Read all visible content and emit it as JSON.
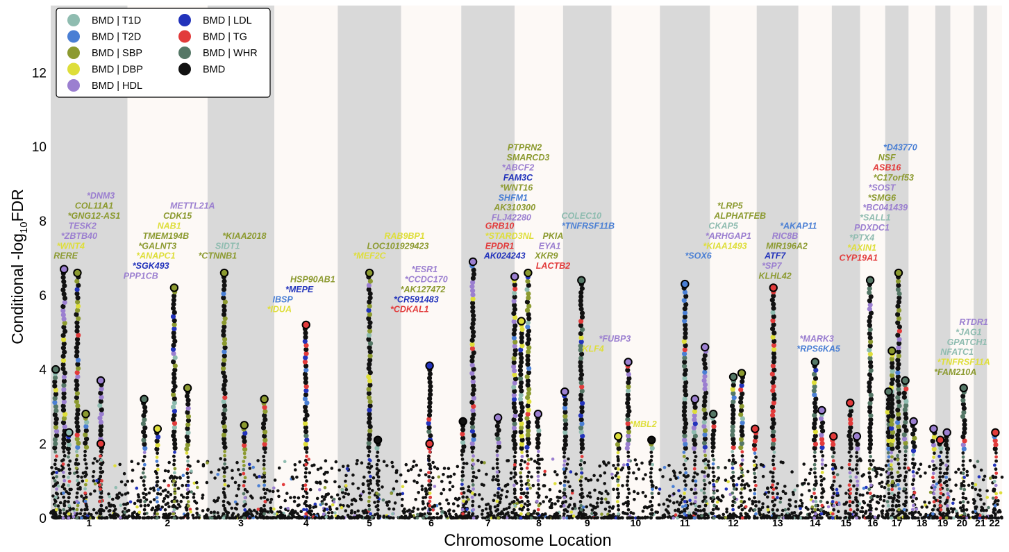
{
  "chart_data": {
    "type": "scatter",
    "xlabel": "Chromosome Location",
    "ylabel_main": "Conditional -log",
    "ylabel_sub": "10",
    "ylabel_end": "FDR",
    "ylim": [
      0,
      13.8
    ],
    "yticks": [
      "0",
      "2",
      "4",
      "6",
      "8",
      "10",
      "12"
    ],
    "ytick_values": [
      0,
      2,
      4,
      6,
      8,
      10,
      12
    ],
    "legend_position": "top-left",
    "grid": false,
    "chromosomes": [
      {
        "label": "1",
        "start": 0,
        "end": 230
      },
      {
        "label": "2",
        "start": 230,
        "end": 470
      },
      {
        "label": "3",
        "start": 470,
        "end": 670
      },
      {
        "label": "4",
        "start": 670,
        "end": 860
      },
      {
        "label": "5",
        "start": 860,
        "end": 1050
      },
      {
        "label": "6",
        "start": 1050,
        "end": 1230
      },
      {
        "label": "7",
        "start": 1230,
        "end": 1390
      },
      {
        "label": "8",
        "start": 1390,
        "end": 1535
      },
      {
        "label": "9",
        "start": 1535,
        "end": 1680
      },
      {
        "label": "10",
        "start": 1680,
        "end": 1825
      },
      {
        "label": "11",
        "start": 1825,
        "end": 1975
      },
      {
        "label": "12",
        "start": 1975,
        "end": 2115
      },
      {
        "label": "13",
        "start": 2115,
        "end": 2240
      },
      {
        "label": "14",
        "start": 2240,
        "end": 2340
      },
      {
        "label": "15",
        "start": 2340,
        "end": 2425
      },
      {
        "label": "16",
        "start": 2425,
        "end": 2500
      },
      {
        "label": "17",
        "start": 2500,
        "end": 2570
      },
      {
        "label": "18",
        "start": 2570,
        "end": 2650
      },
      {
        "label": "19",
        "start": 2650,
        "end": 2695
      },
      {
        "label": "20",
        "start": 2695,
        "end": 2765
      },
      {
        "label": "21",
        "start": 2765,
        "end": 2805
      },
      {
        "label": "22",
        "start": 2805,
        "end": 2850
      }
    ],
    "series": [
      {
        "name": "BMD | T1D",
        "color": "#8fbcb0"
      },
      {
        "name": "BMD | T2D",
        "color": "#4a7fd4"
      },
      {
        "name": "BMD | SBP",
        "color": "#8c9a30"
      },
      {
        "name": "BMD | DBP",
        "color": "#dede3a"
      },
      {
        "name": "BMD | HDL",
        "color": "#9b7fd0"
      },
      {
        "name": "BMD | LDL",
        "color": "#2233bb"
      },
      {
        "name": "BMD | TG",
        "color": "#e23b3b"
      },
      {
        "name": "BMD | WHR",
        "color": "#557766"
      },
      {
        "name": "BMD",
        "color": "#111111"
      }
    ],
    "peaks": [
      {
        "x": 15,
        "y": 4.0,
        "series": "BMD | WHR"
      },
      {
        "x": 40,
        "y": 6.7,
        "series": "BMD | HDL"
      },
      {
        "x": 55,
        "y": 2.3,
        "series": "BMD | T1D"
      },
      {
        "x": 80,
        "y": 6.6,
        "series": "BMD | SBP"
      },
      {
        "x": 105,
        "y": 2.8,
        "series": "BMD | SBP"
      },
      {
        "x": 150,
        "y": 3.7,
        "series": "BMD | HDL"
      },
      {
        "x": 150,
        "y": 2.0,
        "series": "BMD | TG"
      },
      {
        "x": 280,
        "y": 3.2,
        "series": "BMD | WHR"
      },
      {
        "x": 320,
        "y": 2.4,
        "series": "BMD | DBP"
      },
      {
        "x": 370,
        "y": 6.2,
        "series": "BMD | SBP"
      },
      {
        "x": 410,
        "y": 3.5,
        "series": "BMD | SBP"
      },
      {
        "x": 520,
        "y": 6.6,
        "series": "BMD | SBP"
      },
      {
        "x": 580,
        "y": 2.5,
        "series": "BMD | SBP"
      },
      {
        "x": 640,
        "y": 3.2,
        "series": "BMD | SBP"
      },
      {
        "x": 765,
        "y": 5.2,
        "series": "BMD | TG"
      },
      {
        "x": 955,
        "y": 6.6,
        "series": "BMD | SBP"
      },
      {
        "x": 980,
        "y": 2.1,
        "series": "BMD"
      },
      {
        "x": 1135,
        "y": 4.1,
        "series": "BMD | LDL"
      },
      {
        "x": 1135,
        "y": 2.0,
        "series": "BMD | TG"
      },
      {
        "x": 1235,
        "y": 2.6,
        "series": "BMD"
      },
      {
        "x": 1265,
        "y": 6.9,
        "series": "BMD | HDL"
      },
      {
        "x": 1340,
        "y": 2.7,
        "series": "BMD | HDL"
      },
      {
        "x": 1390,
        "y": 6.5,
        "series": "BMD | HDL"
      },
      {
        "x": 1410,
        "y": 5.3,
        "series": "BMD | DBP"
      },
      {
        "x": 1430,
        "y": 6.6,
        "series": "BMD | SBP"
      },
      {
        "x": 1460,
        "y": 2.8,
        "series": "BMD | HDL"
      },
      {
        "x": 1540,
        "y": 3.4,
        "series": "BMD | HDL"
      },
      {
        "x": 1590,
        "y": 6.4,
        "series": "BMD | WHR"
      },
      {
        "x": 1700,
        "y": 2.2,
        "series": "BMD | DBP"
      },
      {
        "x": 1730,
        "y": 4.2,
        "series": "BMD | HDL"
      },
      {
        "x": 1800,
        "y": 2.1,
        "series": "BMD"
      },
      {
        "x": 1900,
        "y": 6.3,
        "series": "BMD | T2D"
      },
      {
        "x": 1930,
        "y": 3.2,
        "series": "BMD | HDL"
      },
      {
        "x": 1960,
        "y": 4.6,
        "series": "BMD | HDL"
      },
      {
        "x": 1985,
        "y": 2.8,
        "series": "BMD | WHR"
      },
      {
        "x": 2045,
        "y": 3.8,
        "series": "BMD | WHR"
      },
      {
        "x": 2070,
        "y": 3.9,
        "series": "BMD | SBP"
      },
      {
        "x": 2110,
        "y": 2.4,
        "series": "BMD | TG"
      },
      {
        "x": 2165,
        "y": 6.2,
        "series": "BMD | TG"
      },
      {
        "x": 2290,
        "y": 4.2,
        "series": "BMD | WHR"
      },
      {
        "x": 2310,
        "y": 2.9,
        "series": "BMD | HDL"
      },
      {
        "x": 2345,
        "y": 2.2,
        "series": "BMD | TG"
      },
      {
        "x": 2395,
        "y": 3.1,
        "series": "BMD | TG"
      },
      {
        "x": 2415,
        "y": 2.2,
        "series": "BMD | HDL"
      },
      {
        "x": 2455,
        "y": 6.4,
        "series": "BMD | WHR"
      },
      {
        "x": 2510,
        "y": 3.4,
        "series": "BMD | WHR"
      },
      {
        "x": 2520,
        "y": 4.5,
        "series": "BMD | SBP"
      },
      {
        "x": 2540,
        "y": 6.6,
        "series": "BMD | SBP"
      },
      {
        "x": 2560,
        "y": 3.7,
        "series": "BMD | WHR"
      },
      {
        "x": 2585,
        "y": 2.6,
        "series": "BMD | HDL"
      },
      {
        "x": 2645,
        "y": 2.4,
        "series": "BMD | HDL"
      },
      {
        "x": 2665,
        "y": 2.1,
        "series": "BMD | TG"
      },
      {
        "x": 2685,
        "y": 2.3,
        "series": "BMD | HDL"
      },
      {
        "x": 2735,
        "y": 3.5,
        "series": "BMD | WHR"
      },
      {
        "x": 2830,
        "y": 2.3,
        "series": "BMD | TG"
      }
    ],
    "gene_labels": [
      {
        "text": "*DNM3",
        "color": "#9b7fd0",
        "x": 150,
        "y": 8.6
      },
      {
        "text": "COL11A1",
        "color": "#8c9a30",
        "x": 130,
        "y": 8.33
      },
      {
        "text": "*GNG12-AS1",
        "color": "#8c9a30",
        "x": 130,
        "y": 8.06
      },
      {
        "text": "TESK2",
        "color": "#9b7fd0",
        "x": 95,
        "y": 7.79
      },
      {
        "text": "*ZBTB40",
        "color": "#9b7fd0",
        "x": 85,
        "y": 7.52
      },
      {
        "text": "*WNT4",
        "color": "#dede3a",
        "x": 60,
        "y": 7.25
      },
      {
        "text": "RERE",
        "color": "#8c9a30",
        "x": 45,
        "y": 6.98
      },
      {
        "text": "METTL21A",
        "color": "#9b7fd0",
        "x": 425,
        "y": 8.33
      },
      {
        "text": "CDK15",
        "color": "#8c9a30",
        "x": 380,
        "y": 8.06
      },
      {
        "text": "NAB1",
        "color": "#dede3a",
        "x": 355,
        "y": 7.79
      },
      {
        "text": "TMEM194B",
        "color": "#8c9a30",
        "x": 345,
        "y": 7.52
      },
      {
        "text": "*GALNT3",
        "color": "#8c9a30",
        "x": 320,
        "y": 7.25
      },
      {
        "text": "*ANAPC1",
        "color": "#dede3a",
        "x": 315,
        "y": 6.98
      },
      {
        "text": "*SGK493",
        "color": "#2233bb",
        "x": 300,
        "y": 6.71
      },
      {
        "text": "PPP1CB",
        "color": "#9b7fd0",
        "x": 270,
        "y": 6.44
      },
      {
        "text": "*KIAA2018",
        "color": "#8c9a30",
        "x": 580,
        "y": 7.52
      },
      {
        "text": "SIDT1",
        "color": "#8fbcb0",
        "x": 530,
        "y": 7.25
      },
      {
        "text": "*CTNNB1",
        "color": "#8c9a30",
        "x": 500,
        "y": 6.98
      },
      {
        "text": "HSP90AB1",
        "color": "#8c9a30",
        "x": 785,
        "y": 6.35
      },
      {
        "text": "*MEPE",
        "color": "#2233bb",
        "x": 745,
        "y": 6.08
      },
      {
        "text": "IBSP",
        "color": "#4a7fd4",
        "x": 695,
        "y": 5.81
      },
      {
        "text": "*IDUA",
        "color": "#dede3a",
        "x": 685,
        "y": 5.54
      },
      {
        "text": "RAB9BP1",
        "color": "#dede3a",
        "x": 1060,
        "y": 7.52
      },
      {
        "text": "LOC101929423",
        "color": "#8c9a30",
        "x": 1040,
        "y": 7.25
      },
      {
        "text": "*MEF2C",
        "color": "#dede3a",
        "x": 955,
        "y": 6.98
      },
      {
        "text": "*ESR1",
        "color": "#9b7fd0",
        "x": 1120,
        "y": 6.62
      },
      {
        "text": "*CCDC170",
        "color": "#9b7fd0",
        "x": 1125,
        "y": 6.35
      },
      {
        "text": "*AK127472",
        "color": "#8c9a30",
        "x": 1115,
        "y": 6.08
      },
      {
        "text": "*CR591483",
        "color": "#2233bb",
        "x": 1095,
        "y": 5.81
      },
      {
        "text": "*CDKAL1",
        "color": "#e23b3b",
        "x": 1075,
        "y": 5.54
      },
      {
        "text": "PTPRN2",
        "color": "#8c9a30",
        "x": 1420,
        "y": 9.9
      },
      {
        "text": "SMARCD3",
        "color": "#8c9a30",
        "x": 1430,
        "y": 9.63
      },
      {
        "text": "*ABCF2",
        "color": "#9b7fd0",
        "x": 1400,
        "y": 9.36
      },
      {
        "text": "FAM3C",
        "color": "#2233bb",
        "x": 1400,
        "y": 9.09
      },
      {
        "text": "*WNT16",
        "color": "#8c9a30",
        "x": 1395,
        "y": 8.82
      },
      {
        "text": "SHFM1",
        "color": "#4a7fd4",
        "x": 1385,
        "y": 8.55
      },
      {
        "text": "AK310300",
        "color": "#8c9a30",
        "x": 1390,
        "y": 8.28
      },
      {
        "text": "FLJ42280",
        "color": "#9b7fd0",
        "x": 1380,
        "y": 8.01
      },
      {
        "text": "*STARD3NL",
        "color": "#dede3a",
        "x": 1375,
        "y": 7.52
      },
      {
        "text": "GRB10",
        "color": "#e23b3b",
        "x": 1345,
        "y": 7.79
      },
      {
        "text": "EPDR1",
        "color": "#e23b3b",
        "x": 1345,
        "y": 7.25
      },
      {
        "text": "AK024243",
        "color": "#2233bb",
        "x": 1360,
        "y": 6.98
      },
      {
        "text": "COLEC10",
        "color": "#8fbcb0",
        "x": 1590,
        "y": 8.06
      },
      {
        "text": "*TNFRSF11B",
        "color": "#4a7fd4",
        "x": 1610,
        "y": 7.79
      },
      {
        "text": "PKIA",
        "color": "#8c9a30",
        "x": 1505,
        "y": 7.52
      },
      {
        "text": "EYA1",
        "color": "#9b7fd0",
        "x": 1495,
        "y": 7.25
      },
      {
        "text": "XKR9",
        "color": "#8c9a30",
        "x": 1485,
        "y": 6.98
      },
      {
        "text": "LACTB2",
        "color": "#e23b3b",
        "x": 1505,
        "y": 6.71
      },
      {
        "text": "*FUBP3",
        "color": "#9b7fd0",
        "x": 1690,
        "y": 4.75
      },
      {
        "text": "KLF4",
        "color": "#dede3a",
        "x": 1625,
        "y": 4.48
      },
      {
        "text": "*MBL2",
        "color": "#dede3a",
        "x": 1775,
        "y": 2.45
      },
      {
        "text": "*LRP5",
        "color": "#8c9a30",
        "x": 2035,
        "y": 8.33
      },
      {
        "text": "ALPHATFEB",
        "color": "#8c9a30",
        "x": 2065,
        "y": 8.06
      },
      {
        "text": "CKAP5",
        "color": "#8fbcb0",
        "x": 2015,
        "y": 7.79
      },
      {
        "text": "*ARHGAP1",
        "color": "#9b7fd0",
        "x": 2030,
        "y": 7.52
      },
      {
        "text": "*KIAA1493",
        "color": "#dede3a",
        "x": 2020,
        "y": 7.25
      },
      {
        "text": "*SOX6",
        "color": "#4a7fd4",
        "x": 1940,
        "y": 6.98
      },
      {
        "text": "*AKAP11",
        "color": "#4a7fd4",
        "x": 2240,
        "y": 7.79
      },
      {
        "text": "RIC8B",
        "color": "#9b7fd0",
        "x": 2200,
        "y": 7.52
      },
      {
        "text": "MIR196A2",
        "color": "#8c9a30",
        "x": 2205,
        "y": 7.25
      },
      {
        "text": "ATF7",
        "color": "#2233bb",
        "x": 2170,
        "y": 6.98
      },
      {
        "text": "*SP7",
        "color": "#9b7fd0",
        "x": 2160,
        "y": 6.71
      },
      {
        "text": "KLHL42",
        "color": "#8c9a30",
        "x": 2170,
        "y": 6.44
      },
      {
        "text": "*MARK3",
        "color": "#9b7fd0",
        "x": 2295,
        "y": 4.75
      },
      {
        "text": "*RPS6KA5",
        "color": "#4a7fd4",
        "x": 2300,
        "y": 4.48
      },
      {
        "text": "*D43770",
        "color": "#4a7fd4",
        "x": 2545,
        "y": 9.9
      },
      {
        "text": "NSF",
        "color": "#8c9a30",
        "x": 2505,
        "y": 9.63
      },
      {
        "text": "ASB16",
        "color": "#e23b3b",
        "x": 2505,
        "y": 9.36
      },
      {
        "text": "*C17orf53",
        "color": "#8c9a30",
        "x": 2525,
        "y": 9.09
      },
      {
        "text": "*SOST",
        "color": "#9b7fd0",
        "x": 2490,
        "y": 8.82
      },
      {
        "text": "*SMG6",
        "color": "#8c9a30",
        "x": 2490,
        "y": 8.55
      },
      {
        "text": "*BC041439",
        "color": "#9b7fd0",
        "x": 2500,
        "y": 8.28
      },
      {
        "text": "*SALL1",
        "color": "#8fbcb0",
        "x": 2470,
        "y": 8.01
      },
      {
        "text": "PDXDC1",
        "color": "#9b7fd0",
        "x": 2460,
        "y": 7.74
      },
      {
        "text": "*PTX4",
        "color": "#8fbcb0",
        "x": 2430,
        "y": 7.47
      },
      {
        "text": "*AXIN1",
        "color": "#dede3a",
        "x": 2430,
        "y": 7.2
      },
      {
        "text": "CYP19A1",
        "color": "#e23b3b",
        "x": 2420,
        "y": 6.93
      },
      {
        "text": "RTDR1",
        "color": "#9b7fd0",
        "x": 2765,
        "y": 5.2
      },
      {
        "text": "*JAG1",
        "color": "#8fbcb0",
        "x": 2750,
        "y": 4.93
      },
      {
        "text": "GPATCH1",
        "color": "#8fbcb0",
        "x": 2745,
        "y": 4.66
      },
      {
        "text": "NFATC1",
        "color": "#8fbcb0",
        "x": 2715,
        "y": 4.39
      },
      {
        "text": "*TNFRSF11A",
        "color": "#dede3a",
        "x": 2735,
        "y": 4.12
      },
      {
        "text": "*FAM210A",
        "color": "#8c9a30",
        "x": 2710,
        "y": 3.85
      }
    ]
  }
}
